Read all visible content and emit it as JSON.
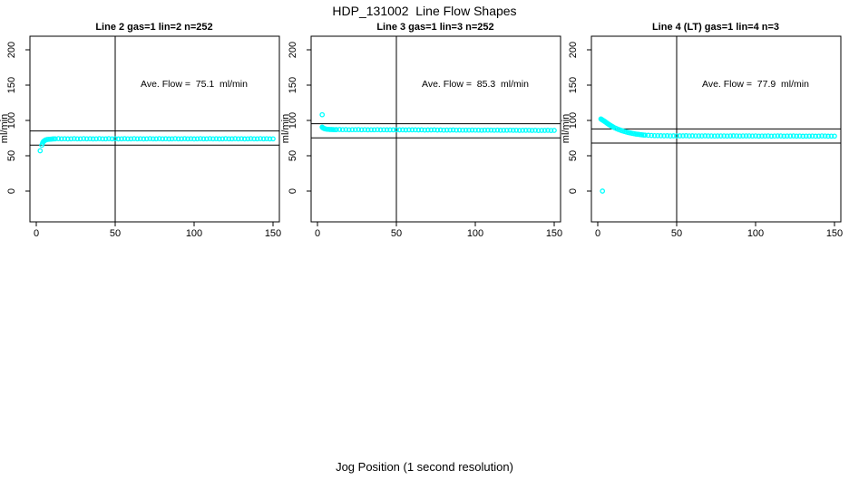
{
  "figure": {
    "title": "HDP_131002  Line Flow Shapes",
    "xlabel": "Jog Position (1 second resolution)",
    "background": "#ffffff",
    "axis_color": "#000000",
    "point_color": "#00ffff"
  },
  "chart_data": [
    {
      "type": "scatter",
      "title": "Line 2 gas=1 lin=2 n=252",
      "ylabel": "ml/min",
      "annotation": "Ave. Flow =  75.1  ml/min",
      "ave_flow": 75.1,
      "n": 252,
      "marker": "open-circle",
      "color": "#00ffff",
      "x_ticks": [
        0,
        50,
        100,
        150
      ],
      "y_ticks": [
        0,
        50,
        100,
        150,
        200
      ],
      "xlim": [
        -4.02,
        154.02
      ],
      "ylim": [
        -43.6,
        219.2
      ],
      "grid": false,
      "hlines": [
        85.1,
        65.1
      ],
      "vline": 50,
      "points": [
        [
          2.5,
          57
        ],
        [
          3.5,
          65
        ],
        [
          4,
          68
        ],
        [
          4.5,
          70
        ],
        [
          5,
          71
        ],
        [
          5.5,
          71.8
        ],
        [
          6,
          72.4
        ],
        [
          7,
          73
        ],
        [
          8,
          73.3
        ],
        [
          9,
          73.5
        ],
        [
          10,
          73.7
        ],
        [
          11,
          73.8
        ],
        [
          12,
          74
        ],
        [
          14,
          74.2
        ],
        [
          16,
          73.9
        ],
        [
          18,
          74.1
        ],
        [
          20,
          73.8
        ],
        [
          22,
          74
        ],
        [
          24,
          74.2
        ],
        [
          26,
          73.9
        ],
        [
          28,
          74
        ],
        [
          30,
          74.2
        ],
        [
          32,
          73.9
        ],
        [
          34,
          74.1
        ],
        [
          36,
          73.8
        ],
        [
          38,
          74
        ],
        [
          40,
          74.2
        ],
        [
          42,
          73.9
        ],
        [
          44,
          74
        ],
        [
          46,
          74.2
        ],
        [
          48,
          73.9
        ],
        [
          50,
          74.1
        ],
        [
          52,
          73.8
        ],
        [
          54,
          74
        ],
        [
          56,
          74.2
        ],
        [
          58,
          73.9
        ],
        [
          60,
          74
        ],
        [
          62,
          74.2
        ],
        [
          64,
          73.9
        ],
        [
          66,
          74.1
        ],
        [
          68,
          73.8
        ],
        [
          70,
          74
        ],
        [
          72,
          74.2
        ],
        [
          74,
          73.9
        ],
        [
          76,
          74
        ],
        [
          78,
          74.2
        ],
        [
          80,
          73.9
        ],
        [
          82,
          74.1
        ],
        [
          84,
          73.8
        ],
        [
          86,
          74
        ],
        [
          88,
          74.2
        ],
        [
          90,
          73.9
        ],
        [
          92,
          74
        ],
        [
          94,
          74.2
        ],
        [
          96,
          73.9
        ],
        [
          98,
          74.1
        ],
        [
          100,
          73.8
        ],
        [
          102,
          74
        ],
        [
          104,
          74.2
        ],
        [
          106,
          73.9
        ],
        [
          108,
          74
        ],
        [
          110,
          74.2
        ],
        [
          112,
          73.9
        ],
        [
          114,
          74.1
        ],
        [
          116,
          73.8
        ],
        [
          118,
          74
        ],
        [
          120,
          74.2
        ],
        [
          122,
          73.9
        ],
        [
          124,
          74
        ],
        [
          126,
          74.2
        ],
        [
          128,
          73.9
        ],
        [
          130,
          74.1
        ],
        [
          132,
          73.8
        ],
        [
          134,
          74
        ],
        [
          136,
          74.2
        ],
        [
          138,
          73.9
        ],
        [
          140,
          74
        ],
        [
          142,
          74.2
        ],
        [
          144,
          73.9
        ],
        [
          146,
          74.1
        ],
        [
          148,
          73.8
        ],
        [
          150,
          74
        ]
      ]
    },
    {
      "type": "scatter",
      "title": "Line 3 gas=1 lin=3 n=252",
      "ylabel": "ml/min",
      "annotation": "Ave. Flow =  85.3  ml/min",
      "ave_flow": 85.3,
      "n": 252,
      "marker": "open-circle",
      "color": "#00ffff",
      "x_ticks": [
        0,
        50,
        100,
        150
      ],
      "y_ticks": [
        0,
        50,
        100,
        150,
        200
      ],
      "xlim": [
        -4.02,
        154.02
      ],
      "ylim": [
        -43.6,
        219.2
      ],
      "grid": false,
      "hlines": [
        95.3,
        75.3
      ],
      "vline": 50,
      "points": [
        [
          3,
          108
        ],
        [
          3,
          90.5
        ],
        [
          3.5,
          89.5
        ],
        [
          4,
          88.8
        ],
        [
          4.5,
          88.3
        ],
        [
          5,
          88
        ],
        [
          6,
          87.6
        ],
        [
          7,
          87.4
        ],
        [
          8,
          87.2
        ],
        [
          9,
          87.1
        ],
        [
          10,
          87
        ],
        [
          11,
          86.9
        ],
        [
          12,
          87
        ],
        [
          14,
          87.1
        ],
        [
          16,
          86.9
        ],
        [
          18,
          87
        ],
        [
          20,
          86.8
        ],
        [
          22,
          86.9
        ],
        [
          24,
          86.9
        ],
        [
          26,
          87
        ],
        [
          28,
          86.8
        ],
        [
          30,
          86.9
        ],
        [
          32,
          86.7
        ],
        [
          34,
          86.8
        ],
        [
          36,
          86.8
        ],
        [
          38,
          86.9
        ],
        [
          40,
          86.7
        ],
        [
          42,
          86.8
        ],
        [
          44,
          86.6
        ],
        [
          46,
          86.7
        ],
        [
          48,
          86.7
        ],
        [
          50,
          86.8
        ],
        [
          52,
          86.6
        ],
        [
          54,
          86.7
        ],
        [
          56,
          86.5
        ],
        [
          58,
          86.6
        ],
        [
          60,
          86.6
        ],
        [
          62,
          86.7
        ],
        [
          64,
          86.5
        ],
        [
          66,
          86.6
        ],
        [
          68,
          86.4
        ],
        [
          70,
          86.5
        ],
        [
          72,
          86.5
        ],
        [
          74,
          86.6
        ],
        [
          76,
          86.4
        ],
        [
          78,
          86.5
        ],
        [
          80,
          86.3
        ],
        [
          82,
          86.4
        ],
        [
          84,
          86.4
        ],
        [
          86,
          86.5
        ],
        [
          88,
          86.3
        ],
        [
          90,
          86.4
        ],
        [
          92,
          86.2
        ],
        [
          94,
          86.3
        ],
        [
          96,
          86.3
        ],
        [
          98,
          86.4
        ],
        [
          100,
          86.2
        ],
        [
          102,
          86.3
        ],
        [
          104,
          86.1
        ],
        [
          106,
          86.2
        ],
        [
          108,
          86.2
        ],
        [
          110,
          86.3
        ],
        [
          112,
          86.1
        ],
        [
          114,
          86.2
        ],
        [
          116,
          86
        ],
        [
          118,
          86.1
        ],
        [
          120,
          86.1
        ],
        [
          122,
          86.2
        ],
        [
          124,
          86
        ],
        [
          126,
          86.1
        ],
        [
          128,
          85.9
        ],
        [
          130,
          86
        ],
        [
          132,
          86
        ],
        [
          134,
          86.1
        ],
        [
          136,
          85.9
        ],
        [
          138,
          86
        ],
        [
          140,
          85.8
        ],
        [
          142,
          85.9
        ],
        [
          144,
          85.9
        ],
        [
          146,
          86
        ],
        [
          148,
          85.8
        ],
        [
          150,
          85.9
        ]
      ]
    },
    {
      "type": "scatter",
      "title": "Line 4 (LT) gas=1 lin=4 n=3",
      "ylabel": "ml/min",
      "annotation": "Ave. Flow =  77.9  ml/min",
      "ave_flow": 77.9,
      "n": 3,
      "marker": "open-circle",
      "color": "#00ffff",
      "x_ticks": [
        0,
        50,
        100,
        150
      ],
      "y_ticks": [
        0,
        50,
        100,
        150,
        200
      ],
      "xlim": [
        -4.02,
        154.02
      ],
      "ylim": [
        -43.6,
        219.2
      ],
      "grid": false,
      "hlines": [
        87.9,
        67.9
      ],
      "vline": 50,
      "points": [
        [
          3,
          0
        ],
        [
          2,
          102
        ],
        [
          2.5,
          101.3
        ],
        [
          3,
          100.6
        ],
        [
          3.5,
          99.9
        ],
        [
          4,
          99.2
        ],
        [
          4.5,
          98.4
        ],
        [
          5,
          97.6
        ],
        [
          5.5,
          96.8
        ],
        [
          6,
          96
        ],
        [
          6.5,
          95.2
        ],
        [
          7,
          94.4
        ],
        [
          7.5,
          93.7
        ],
        [
          8,
          93
        ],
        [
          8.5,
          92.3
        ],
        [
          9,
          91.6
        ],
        [
          9.5,
          91
        ],
        [
          10,
          90.4
        ],
        [
          11,
          89.3
        ],
        [
          12,
          88.3
        ],
        [
          13,
          87.4
        ],
        [
          14,
          86.5
        ],
        [
          15,
          85.7
        ],
        [
          16,
          85
        ],
        [
          17,
          84.3
        ],
        [
          18,
          83.7
        ],
        [
          19,
          83.1
        ],
        [
          20,
          82.6
        ],
        [
          21,
          82.1
        ],
        [
          22,
          81.6
        ],
        [
          23,
          81.2
        ],
        [
          24,
          80.8
        ],
        [
          25,
          80.5
        ],
        [
          26,
          80.2
        ],
        [
          27,
          79.9
        ],
        [
          28,
          79.6
        ],
        [
          29,
          79.4
        ],
        [
          30,
          79.2
        ],
        [
          32,
          78.9
        ],
        [
          34,
          78.7
        ],
        [
          36,
          78.5
        ],
        [
          38,
          78.4
        ],
        [
          40,
          78.3
        ],
        [
          42,
          78.2
        ],
        [
          44,
          78.3
        ],
        [
          46,
          78.1
        ],
        [
          48,
          78.2
        ],
        [
          50,
          78
        ],
        [
          52,
          78.2
        ],
        [
          54,
          78.2
        ],
        [
          56,
          78.3
        ],
        [
          58,
          78.1
        ],
        [
          60,
          78.2
        ],
        [
          62,
          78
        ],
        [
          64,
          78.1
        ],
        [
          66,
          78.1
        ],
        [
          68,
          78.2
        ],
        [
          70,
          78
        ],
        [
          72,
          78.1
        ],
        [
          74,
          77.9
        ],
        [
          76,
          78
        ],
        [
          78,
          78
        ],
        [
          80,
          78.1
        ],
        [
          82,
          77.9
        ],
        [
          84,
          78
        ],
        [
          86,
          78.2
        ],
        [
          88,
          78.1
        ],
        [
          90,
          77.9
        ],
        [
          92,
          78
        ],
        [
          94,
          78
        ],
        [
          96,
          78.1
        ],
        [
          98,
          77.9
        ],
        [
          100,
          78
        ],
        [
          102,
          77.8
        ],
        [
          104,
          77.9
        ],
        [
          106,
          77.9
        ],
        [
          108,
          78
        ],
        [
          110,
          77.8
        ],
        [
          112,
          77.9
        ],
        [
          114,
          78.1
        ],
        [
          116,
          78
        ],
        [
          118,
          77.8
        ],
        [
          120,
          77.9
        ],
        [
          122,
          77.9
        ],
        [
          124,
          78
        ],
        [
          126,
          77.8
        ],
        [
          128,
          77.9
        ],
        [
          130,
          77.7
        ],
        [
          132,
          77.8
        ],
        [
          134,
          77.8
        ],
        [
          136,
          77.9
        ],
        [
          138,
          77.7
        ],
        [
          140,
          77.8
        ],
        [
          142,
          78
        ],
        [
          144,
          77.9
        ],
        [
          146,
          77.7
        ],
        [
          148,
          77.8
        ],
        [
          150,
          77.8
        ]
      ]
    }
  ]
}
